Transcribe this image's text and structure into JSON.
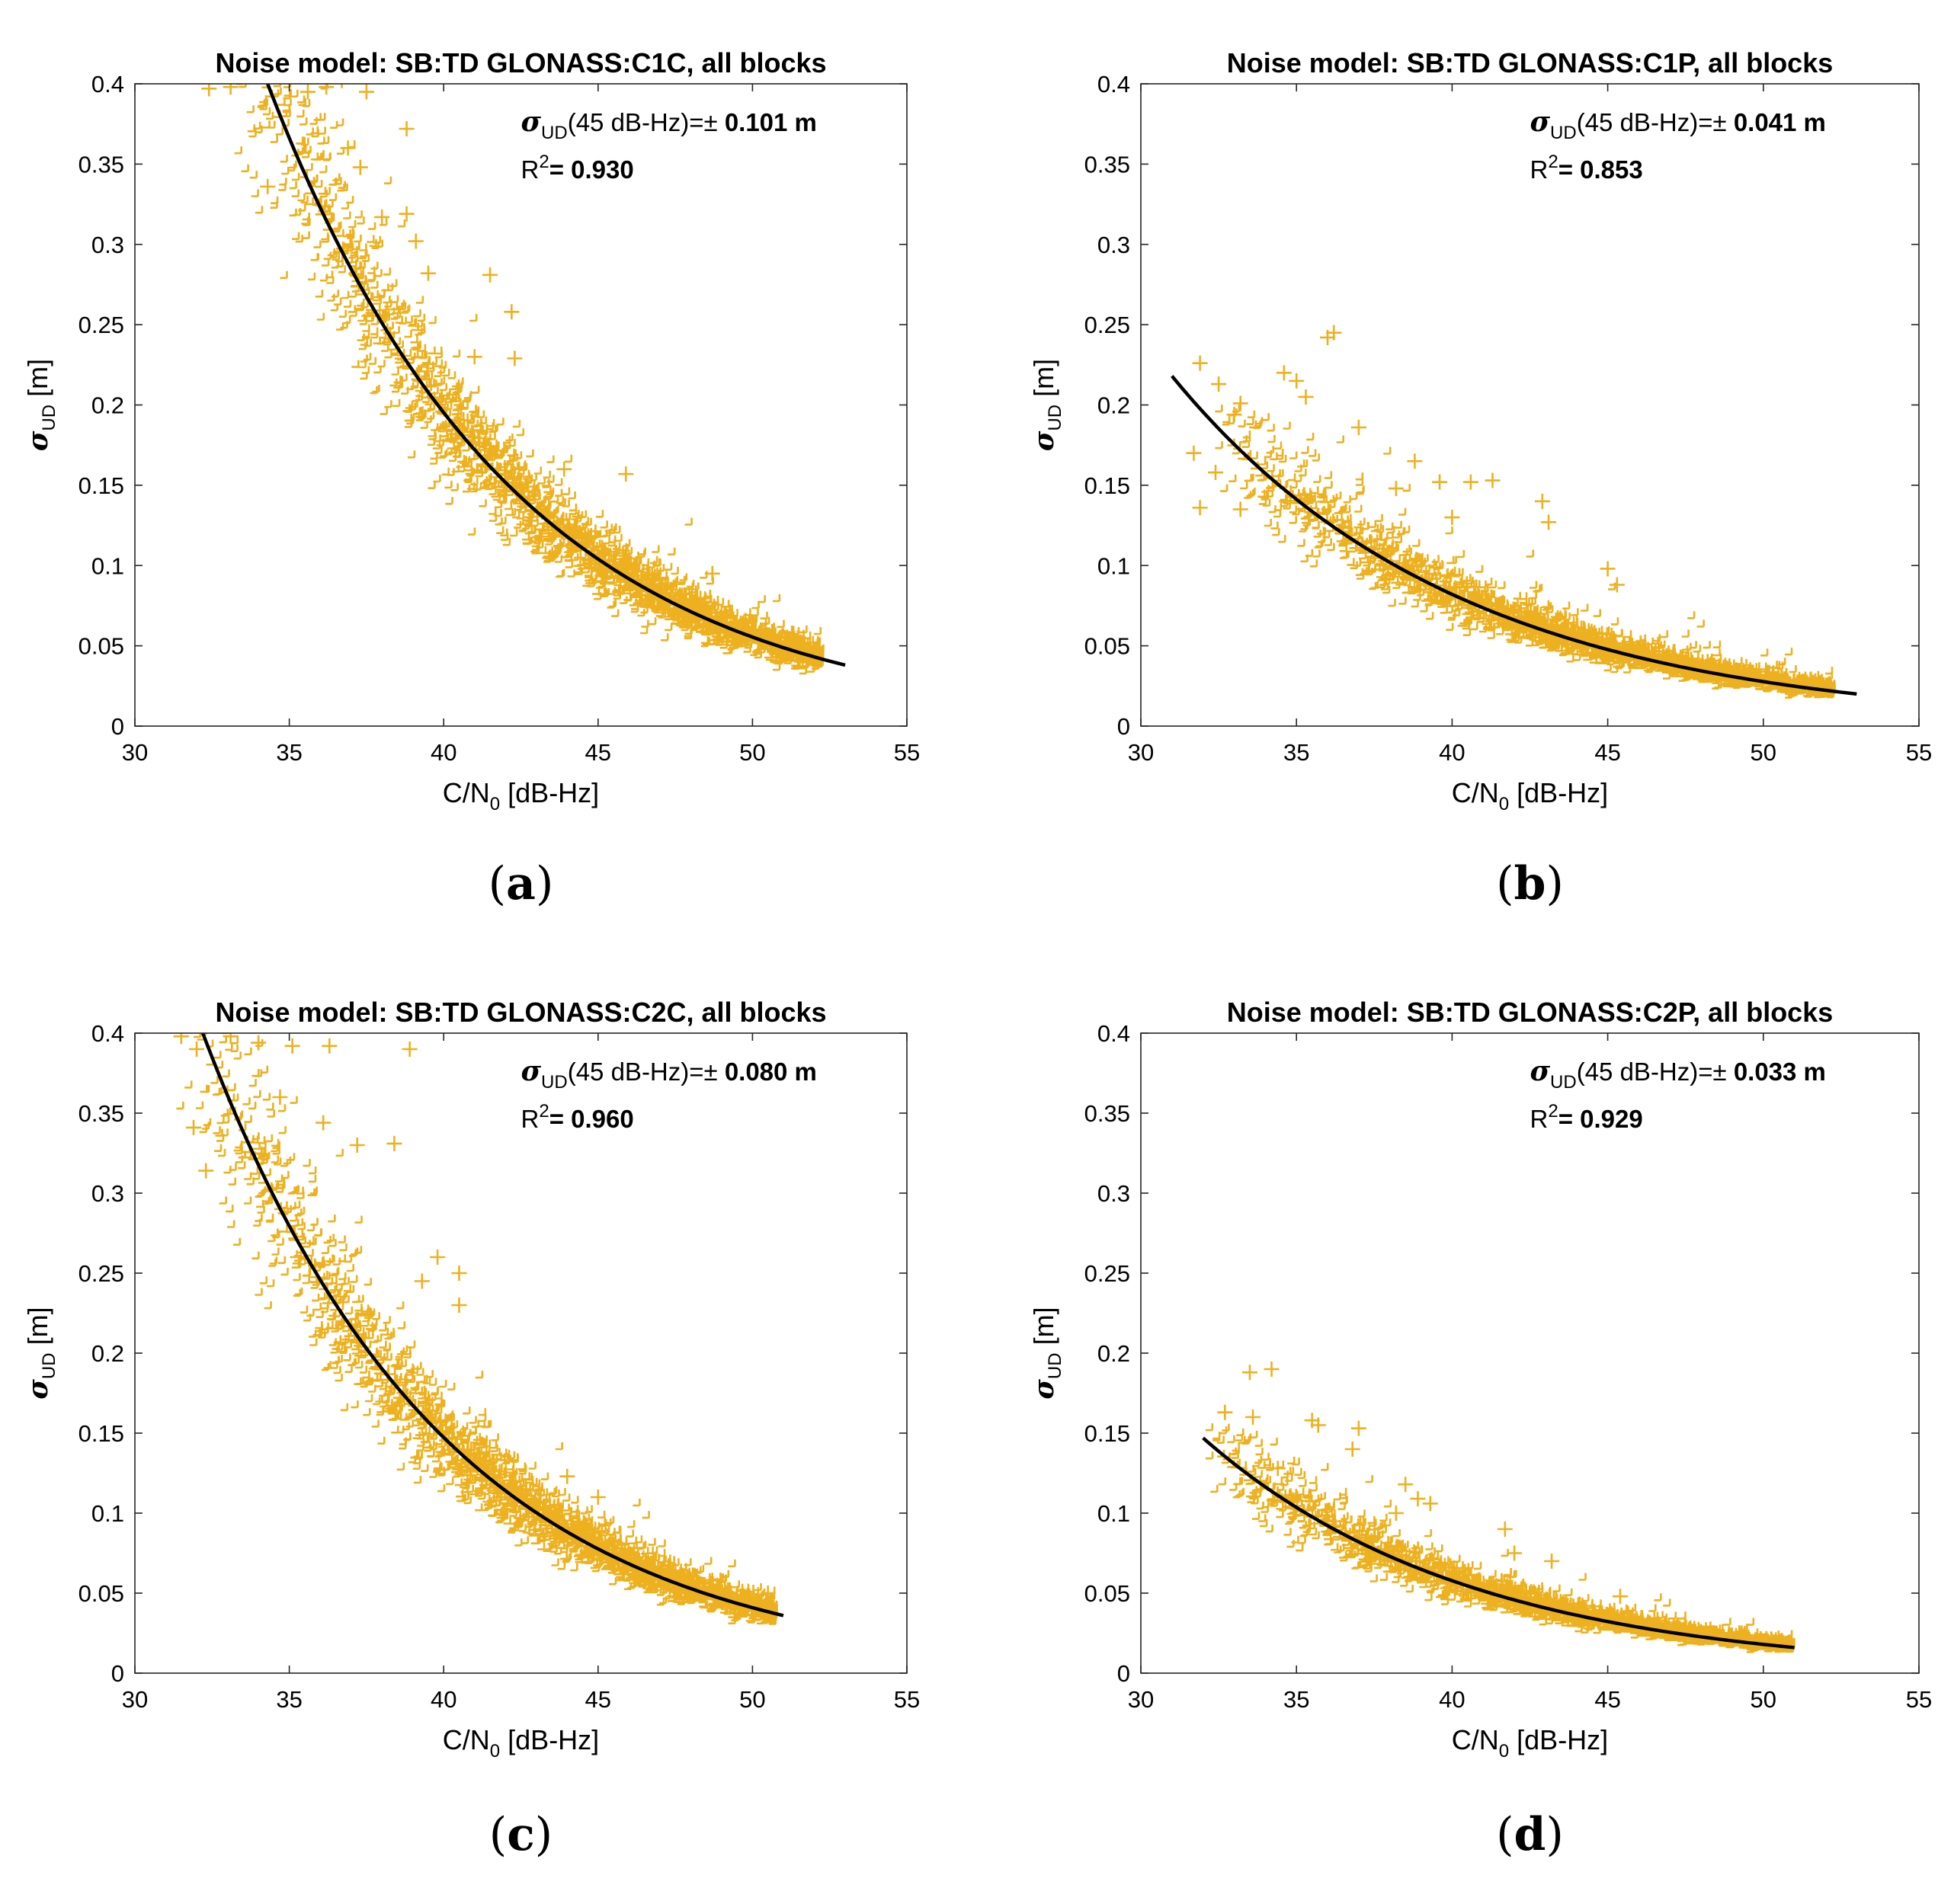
{
  "chart_data": [
    {
      "type": "scatter",
      "panel": "(a)",
      "panel_letter": "a",
      "title": "Noise model: SB:TD GLONASS:C1C, all blocks",
      "xlabel": "C/N",
      "xlabel_sub": "0",
      "xlabel_unit": " [dB-Hz]",
      "ylabel": "σ",
      "ylabel_sub": "UD",
      "ylabel_unit": " [m]",
      "xlim": [
        30,
        55
      ],
      "ylim": [
        0,
        0.4
      ],
      "xticks": [
        "30",
        "35",
        "40",
        "45",
        "50",
        "55"
      ],
      "yticks": [
        "0",
        "0.05",
        "0.1",
        "0.15",
        "0.2",
        "0.25",
        "0.3",
        "0.35",
        "0.4"
      ],
      "annotation": {
        "prefix": "σ",
        "sub": "UD",
        "mid": "(45 dB-Hz)=± ",
        "value": "0.101 m",
        "r2_label": "R",
        "r2_sup": "2",
        "r2_eq": "= ",
        "r2_value": "0.930"
      },
      "marker_color": "#EDB120",
      "line_color": "#000000",
      "fit": {
        "x_start": 34.3,
        "y_start": 0.4,
        "x_end": 53.0,
        "y_end": 0.038,
        "model": "exponential",
        "sigma_at_45": 0.101
      },
      "cloud": {
        "x_min": 32.0,
        "x_max": 52.3,
        "spread": 0.22
      },
      "outliers": [
        [
          32.4,
          0.397
        ],
        [
          33.1,
          0.398
        ],
        [
          35.6,
          0.395
        ],
        [
          36.2,
          0.398
        ],
        [
          36.7,
          0.402
        ],
        [
          37.5,
          0.395
        ],
        [
          38.8,
          0.372
        ],
        [
          36.9,
          0.36
        ],
        [
          37.3,
          0.348
        ],
        [
          38.0,
          0.317
        ],
        [
          38.8,
          0.319
        ],
        [
          39.1,
          0.302
        ],
        [
          41.5,
          0.281
        ],
        [
          42.2,
          0.258
        ],
        [
          39.5,
          0.282
        ],
        [
          41.0,
          0.23
        ],
        [
          42.3,
          0.229
        ],
        [
          45.9,
          0.157
        ],
        [
          43.9,
          0.16
        ],
        [
          48.7,
          0.095
        ],
        [
          34.3,
          0.336
        ]
      ]
    },
    {
      "type": "scatter",
      "panel": "(b)",
      "panel_letter": "b",
      "title": "Noise model: SB:TD GLONASS:C1P, all blocks",
      "xlabel": "C/N",
      "xlabel_sub": "0",
      "xlabel_unit": " [dB-Hz]",
      "ylabel": "σ",
      "ylabel_sub": "UD",
      "ylabel_unit": " [m]",
      "xlim": [
        30,
        55
      ],
      "ylim": [
        0,
        0.4
      ],
      "xticks": [
        "30",
        "35",
        "40",
        "45",
        "50",
        "55"
      ],
      "yticks": [
        "0",
        "0.05",
        "0.1",
        "0.15",
        "0.2",
        "0.25",
        "0.3",
        "0.35",
        "0.4"
      ],
      "annotation": {
        "prefix": "σ",
        "sub": "UD",
        "mid": "(45 dB-Hz)=± ",
        "value": "0.041 m",
        "r2_label": "R",
        "r2_sup": "2",
        "r2_eq": "= ",
        "r2_value": "0.853"
      },
      "marker_color": "#EDB120",
      "line_color": "#000000",
      "fit": {
        "x_start": 31.0,
        "y_start": 0.218,
        "x_end": 53.0,
        "y_end": 0.02,
        "model": "exponential",
        "sigma_at_45": 0.041
      },
      "cloud": {
        "x_min": 32.5,
        "x_max": 52.3,
        "spread": 0.3
      },
      "outliers": [
        [
          31.9,
          0.226
        ],
        [
          32.5,
          0.213
        ],
        [
          33.2,
          0.201
        ],
        [
          33.0,
          0.194
        ],
        [
          34.6,
          0.22
        ],
        [
          35.0,
          0.215
        ],
        [
          36.2,
          0.245
        ],
        [
          36.0,
          0.242
        ],
        [
          35.3,
          0.205
        ],
        [
          31.7,
          0.17
        ],
        [
          31.9,
          0.136
        ],
        [
          32.4,
          0.158
        ],
        [
          33.2,
          0.135
        ],
        [
          37.0,
          0.186
        ],
        [
          38.8,
          0.165
        ],
        [
          39.6,
          0.152
        ],
        [
          40.6,
          0.152
        ],
        [
          41.3,
          0.153
        ],
        [
          42.9,
          0.14
        ],
        [
          43.1,
          0.127
        ],
        [
          45.0,
          0.098
        ],
        [
          45.3,
          0.088
        ],
        [
          50.3,
          0.032
        ],
        [
          38.2,
          0.148
        ],
        [
          40.0,
          0.13
        ]
      ]
    },
    {
      "type": "scatter",
      "panel": "(c)",
      "panel_letter": "c",
      "title": "Noise model: SB:TD GLONASS:C2C, all blocks",
      "xlabel": "C/N",
      "xlabel_sub": "0",
      "xlabel_unit": " [dB-Hz]",
      "ylabel": "σ",
      "ylabel_sub": "UD",
      "ylabel_unit": " [m]",
      "xlim": [
        30,
        55
      ],
      "ylim": [
        0,
        0.4
      ],
      "xticks": [
        "30",
        "35",
        "40",
        "45",
        "50",
        "55"
      ],
      "yticks": [
        "0",
        "0.05",
        "0.1",
        "0.15",
        "0.2",
        "0.25",
        "0.3",
        "0.35",
        "0.4"
      ],
      "annotation": {
        "prefix": "σ",
        "sub": "UD",
        "mid": "(45 dB-Hz)=± ",
        "value": "0.080 m",
        "r2_label": "R",
        "r2_sup": "2",
        "r2_eq": "= ",
        "r2_value": "0.960"
      },
      "marker_color": "#EDB120",
      "line_color": "#000000",
      "fit": {
        "x_start": 32.2,
        "y_start": 0.4,
        "x_end": 51.0,
        "y_end": 0.036,
        "model": "exponential",
        "sigma_at_45": 0.08
      },
      "cloud": {
        "x_min": 31.3,
        "x_max": 50.8,
        "spread": 0.2
      },
      "outliers": [
        [
          31.5,
          0.398
        ],
        [
          32.0,
          0.39
        ],
        [
          33.1,
          0.398
        ],
        [
          34.0,
          0.394
        ],
        [
          35.1,
          0.392
        ],
        [
          36.3,
          0.392
        ],
        [
          38.9,
          0.39
        ],
        [
          31.9,
          0.341
        ],
        [
          32.3,
          0.314
        ],
        [
          37.2,
          0.33
        ],
        [
          38.4,
          0.331
        ],
        [
          34.7,
          0.36
        ],
        [
          36.1,
          0.344
        ],
        [
          39.8,
          0.26
        ],
        [
          40.5,
          0.25
        ],
        [
          40.5,
          0.23
        ],
        [
          39.3,
          0.245
        ],
        [
          44.0,
          0.123
        ],
        [
          45.0,
          0.11
        ],
        [
          48.7,
          0.058
        ],
        [
          50.5,
          0.05
        ]
      ]
    },
    {
      "type": "scatter",
      "panel": "(d)",
      "panel_letter": "d",
      "title": "Noise model: SB:TD GLONASS:C2P, all blocks",
      "xlabel": "C/N",
      "xlabel_sub": "0",
      "xlabel_unit": " [dB-Hz]",
      "ylabel": "σ",
      "ylabel_sub": "UD",
      "ylabel_unit": " [m]",
      "xlim": [
        30,
        55
      ],
      "ylim": [
        0,
        0.4
      ],
      "xticks": [
        "30",
        "35",
        "40",
        "45",
        "50",
        "55"
      ],
      "yticks": [
        "0",
        "0.05",
        "0.1",
        "0.15",
        "0.2",
        "0.25",
        "0.3",
        "0.35",
        "0.4"
      ],
      "annotation": {
        "prefix": "σ",
        "sub": "UD",
        "mid": "(45 dB-Hz)=± ",
        "value": "0.033 m",
        "r2_label": "R",
        "r2_sup": "2",
        "r2_eq": "= ",
        "r2_value": "0.929"
      },
      "marker_color": "#EDB120",
      "line_color": "#000000",
      "fit": {
        "x_start": 32.0,
        "y_start": 0.147,
        "x_end": 51.0,
        "y_end": 0.016,
        "model": "exponential",
        "sigma_at_45": 0.033
      },
      "cloud": {
        "x_min": 32.2,
        "x_max": 51.0,
        "spread": 0.24
      },
      "outliers": [
        [
          33.5,
          0.188
        ],
        [
          34.2,
          0.19
        ],
        [
          32.7,
          0.163
        ],
        [
          33.6,
          0.16
        ],
        [
          35.5,
          0.158
        ],
        [
          35.7,
          0.155
        ],
        [
          37.0,
          0.153
        ],
        [
          36.8,
          0.14
        ],
        [
          34.4,
          0.128
        ],
        [
          38.5,
          0.118
        ],
        [
          38.2,
          0.1
        ],
        [
          38.9,
          0.109
        ],
        [
          39.3,
          0.106
        ],
        [
          41.7,
          0.09
        ],
        [
          42.0,
          0.075
        ],
        [
          45.4,
          0.048
        ],
        [
          43.2,
          0.07
        ]
      ]
    }
  ]
}
